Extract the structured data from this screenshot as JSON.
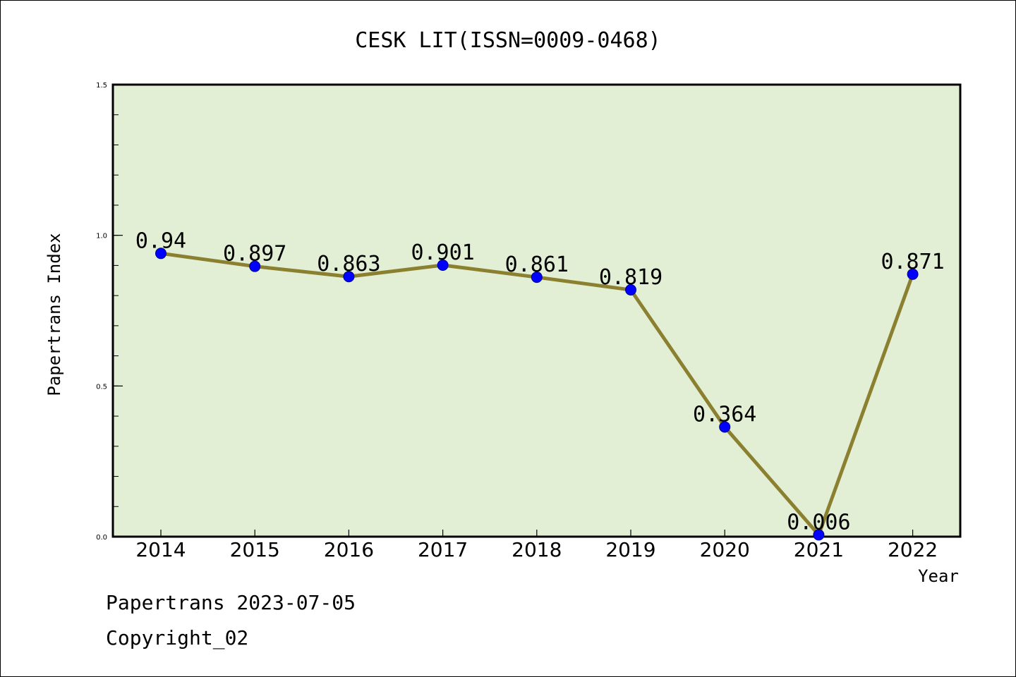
{
  "chart_data": {
    "type": "line",
    "title": "CESK LIT(ISSN=0009-0468)",
    "xlabel": "Year",
    "ylabel": "Papertrans Index",
    "categories": [
      "2014",
      "2015",
      "2016",
      "2017",
      "2018",
      "2019",
      "2020",
      "2021",
      "2022"
    ],
    "values": [
      0.94,
      0.897,
      0.863,
      0.901,
      0.861,
      0.819,
      0.364,
      0.006,
      0.871
    ],
    "data_labels": [
      "0.94",
      "0.897",
      "0.863",
      "0.901",
      "0.861",
      "0.819",
      "0.364",
      "0.006",
      "0.871"
    ],
    "ylim": [
      0,
      1.5
    ],
    "yticks": [
      "0.0",
      "0.5",
      "1.0",
      "1.5"
    ],
    "grid": false,
    "colors": {
      "plot_bg": "#e2efd5",
      "line": "#8b8030",
      "marker": "#0000ff"
    }
  },
  "footer": {
    "line1": "Papertrans 2023-07-05",
    "line2": "Copyright_02"
  }
}
